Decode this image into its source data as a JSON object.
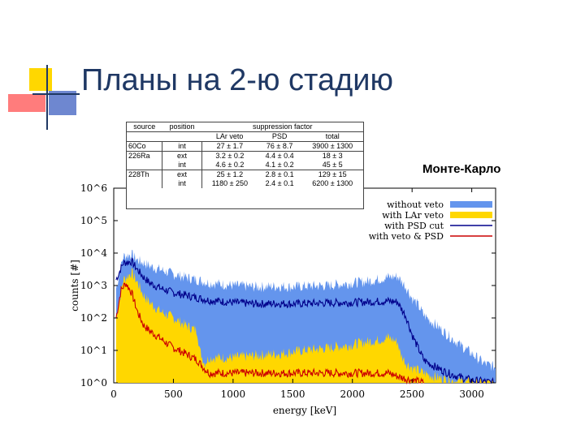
{
  "slide": {
    "title": "Планы на 2-ю стадию",
    "subtitle": "Монте-Карло"
  },
  "colors": {
    "title": "#1f3864",
    "deco_yellow": "#ffd700",
    "deco_red": "#ff4040",
    "deco_blue": "#5572c8"
  },
  "table": {
    "headers": [
      "source",
      "position",
      "suppression factor"
    ],
    "subheaders": [
      "LAr veto",
      "PSD",
      "total"
    ],
    "rows": [
      {
        "source": "60Co",
        "position": "int",
        "lar": "27 ± 1.7",
        "psd": "76 ± 8.7",
        "total": "3900 ± 1300"
      },
      {
        "source": "226Ra",
        "position": "ext",
        "lar": "3.2 ± 0.2",
        "psd": "4.4 ± 0.4",
        "total": "18 ± 3"
      },
      {
        "source": "",
        "position": "int",
        "lar": "4.6 ± 0.2",
        "psd": "4.1 ± 0.2",
        "total": "45 ± 5"
      },
      {
        "source": "228Th",
        "position": "ext",
        "lar": "25 ± 1.2",
        "psd": "2.8 ± 0.1",
        "total": "129 ± 15"
      },
      {
        "source": "",
        "position": "int",
        "lar": "1180 ± 250",
        "psd": "2.4 ± 0.1",
        "total": "6200 ± 1300"
      }
    ]
  },
  "chart_data": {
    "type": "area",
    "xlabel": "energy [keV]",
    "ylabel": "counts [#]",
    "xlim": [
      0,
      3200
    ],
    "ylim": [
      1,
      1000000
    ],
    "yscale": "log",
    "x_ticks": [
      "0",
      "500",
      "1000",
      "1500",
      "2000",
      "2500",
      "3000"
    ],
    "x_tick_values": [
      0,
      500,
      1000,
      1500,
      2000,
      2500,
      3000
    ],
    "y_ticks": [
      "10^0",
      "10^1",
      "10^2",
      "10^3",
      "10^4",
      "10^5",
      "10^6"
    ],
    "y_tick_values": [
      1,
      10,
      100,
      1000,
      10000,
      100000,
      1000000
    ],
    "legend_position": "top-right",
    "series": [
      {
        "name": "without veto",
        "color": "#6495ed",
        "style": "area",
        "x": [
          20,
          80,
          150,
          200,
          250,
          300,
          400,
          500,
          600,
          700,
          800,
          1000,
          1200,
          1400,
          1500,
          1600,
          1800,
          2000,
          2100,
          2200,
          2300,
          2380,
          2400,
          2450,
          2500,
          2550,
          2600,
          2700,
          2800,
          2900,
          3000,
          3100,
          3200
        ],
        "y": [
          800,
          8000,
          9000,
          6000,
          5000,
          4000,
          3000,
          2200,
          1800,
          1500,
          1200,
          1000,
          900,
          950,
          900,
          950,
          1000,
          1200,
          1300,
          1500,
          1800,
          1900,
          1500,
          900,
          400,
          250,
          120,
          60,
          30,
          15,
          8,
          4,
          3
        ]
      },
      {
        "name": "with LAr veto",
        "color": "#ffd700",
        "style": "area",
        "x": [
          20,
          80,
          150,
          200,
          250,
          300,
          400,
          500,
          600,
          700,
          720,
          760,
          800,
          1000,
          1200,
          1400,
          1500,
          1600,
          1800,
          2000,
          2100,
          2200,
          2300,
          2380,
          2400,
          2450,
          2500,
          2600,
          2700,
          2800,
          2900,
          3000,
          3200
        ],
        "y": [
          100,
          1500,
          2500,
          1200,
          500,
          300,
          150,
          100,
          60,
          40,
          10,
          4,
          6,
          6,
          7,
          8,
          9,
          10,
          12,
          15,
          18,
          20,
          25,
          18,
          8,
          4,
          3,
          2,
          1.5,
          1.2,
          1.1,
          1,
          1
        ]
      },
      {
        "name": "with PSD cut",
        "color": "#00008b",
        "style": "line",
        "x": [
          20,
          80,
          150,
          200,
          250,
          300,
          400,
          500,
          600,
          700,
          800,
          1000,
          1200,
          1400,
          1500,
          1600,
          1800,
          2000,
          2100,
          2200,
          2300,
          2380,
          2400,
          2450,
          2500,
          2550,
          2600,
          2700,
          2800,
          2900,
          3000,
          3100,
          3200
        ],
        "y": [
          1500,
          5000,
          5500,
          3000,
          1800,
          1200,
          800,
          600,
          500,
          420,
          350,
          300,
          270,
          280,
          270,
          280,
          290,
          300,
          310,
          320,
          330,
          310,
          220,
          110,
          30,
          12,
          5,
          3,
          2,
          1.5,
          1.2,
          1.1,
          1
        ]
      },
      {
        "name": "with veto & PSD",
        "color": "#cc0000",
        "style": "line",
        "x": [
          20,
          60,
          100,
          150,
          200,
          250,
          300,
          350,
          400,
          450,
          500,
          600,
          700,
          750,
          800,
          1000,
          1200,
          1400,
          1500,
          1600,
          1800,
          2000,
          2100,
          2200,
          2300,
          2400,
          2500,
          2600
        ],
        "y": [
          100,
          700,
          1200,
          600,
          150,
          60,
          40,
          30,
          22,
          16,
          12,
          8,
          5,
          3,
          2,
          2,
          2,
          2,
          2,
          2,
          2,
          2,
          2,
          2,
          2,
          1.5,
          1.2,
          1
        ]
      }
    ]
  }
}
